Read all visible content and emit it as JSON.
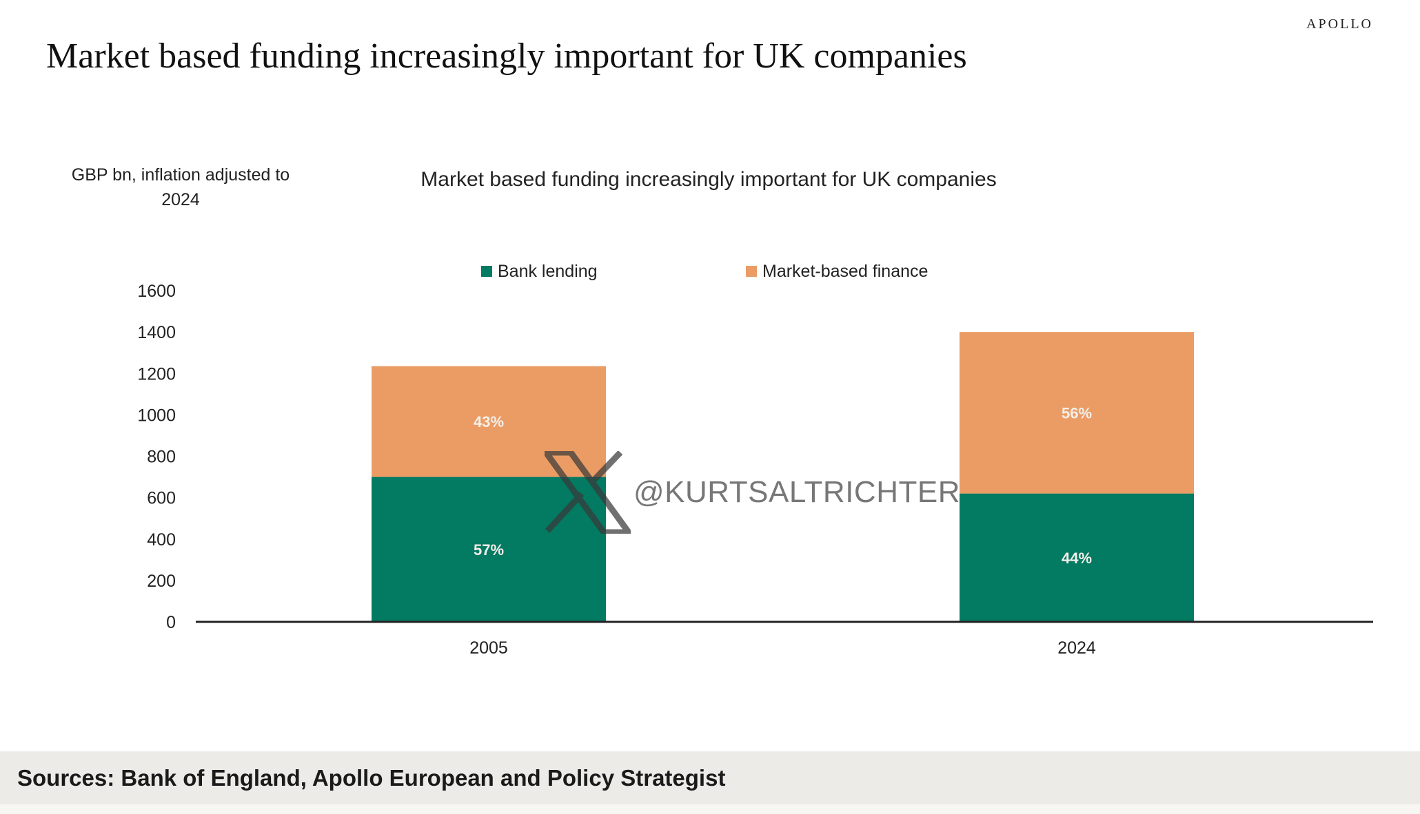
{
  "brand": "APOLLO",
  "page_title": "Market based funding increasingly important for UK companies",
  "footer": {
    "sources": "Sources: Bank of England, Apollo European and Policy Strategist"
  },
  "watermark": {
    "icon": "x-logo-icon",
    "handle": "@KURTSALTRICHTER"
  },
  "colors": {
    "bank": "#037a62",
    "market": "#eb9c64",
    "axis": "#222222"
  },
  "chart_data": {
    "type": "bar",
    "stacked": true,
    "title": "Market based funding increasingly important for UK companies",
    "ylabel_lines": [
      "GBP bn, inflation adjusted to",
      "2024"
    ],
    "categories": [
      "2005",
      "2024"
    ],
    "series": [
      {
        "name": "Bank lending",
        "color": "#037a62",
        "values": [
          700,
          620
        ],
        "labels": [
          "57%",
          "44%"
        ]
      },
      {
        "name": "Market-based finance",
        "color": "#eb9c64",
        "values": [
          535,
          780
        ],
        "labels": [
          "43%",
          "56%"
        ]
      }
    ],
    "ylim": [
      0,
      1600
    ],
    "yticks": [
      0,
      200,
      400,
      600,
      800,
      1000,
      1200,
      1400,
      1600
    ],
    "grid": false,
    "legend": "top-center"
  }
}
